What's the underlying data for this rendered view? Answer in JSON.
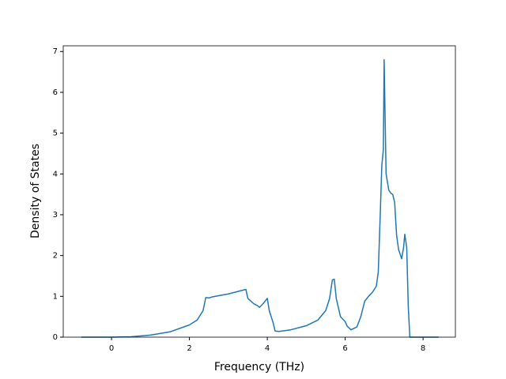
{
  "chart_data": {
    "type": "line",
    "x_label": "Frequency (THz)",
    "y_label": "Density of States",
    "xlim": [
      -1.24,
      8.83
    ],
    "ylim": [
      0,
      7.14
    ],
    "xticks": [
      0,
      2,
      4,
      6,
      8
    ],
    "yticks": [
      0,
      1,
      2,
      3,
      4,
      5,
      6,
      7
    ],
    "series": [
      {
        "color": "#1f77b4",
        "x": [
          -0.78,
          0,
          0.5,
          1.0,
          1.5,
          2.0,
          2.2,
          2.35,
          2.42,
          2.5,
          2.6,
          3.0,
          3.45,
          3.5,
          3.65,
          3.75,
          3.8,
          3.9,
          4.0,
          4.05,
          4.15,
          4.2,
          4.3,
          4.6,
          5.0,
          5.3,
          5.5,
          5.6,
          5.67,
          5.72,
          5.77,
          5.88,
          6.0,
          6.05,
          6.15,
          6.3,
          6.4,
          6.5,
          6.6,
          6.7,
          6.8,
          6.85,
          6.9,
          6.94,
          6.98,
          7.0,
          7.05,
          7.12,
          7.18,
          7.22,
          7.27,
          7.32,
          7.37,
          7.45,
          7.5,
          7.53,
          7.58,
          7.62,
          7.66,
          8.4
        ],
        "values": [
          0,
          0,
          0.01,
          0.05,
          0.13,
          0.3,
          0.42,
          0.65,
          0.97,
          0.96,
          0.99,
          1.06,
          1.17,
          0.95,
          0.82,
          0.77,
          0.73,
          0.83,
          0.95,
          0.65,
          0.35,
          0.15,
          0.14,
          0.18,
          0.28,
          0.42,
          0.65,
          0.95,
          1.4,
          1.42,
          0.95,
          0.5,
          0.38,
          0.27,
          0.18,
          0.25,
          0.5,
          0.88,
          1.0,
          1.1,
          1.25,
          1.6,
          3.0,
          4.2,
          4.6,
          6.8,
          4.0,
          3.6,
          3.52,
          3.5,
          3.3,
          2.5,
          2.15,
          1.92,
          2.2,
          2.52,
          2.2,
          0.75,
          0,
          0
        ]
      }
    ]
  }
}
